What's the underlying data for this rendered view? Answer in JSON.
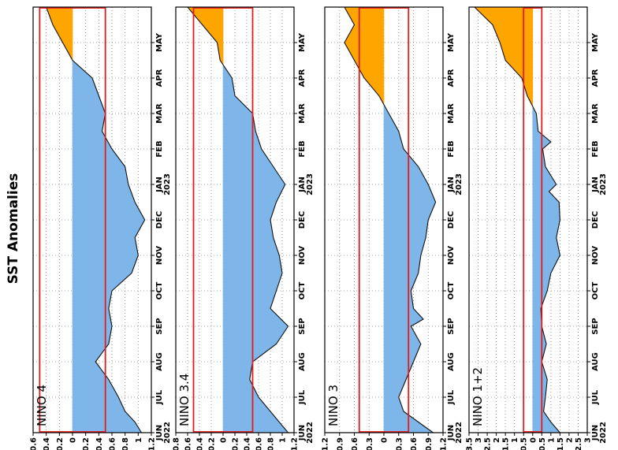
{
  "title": "SST Anomalies",
  "chart_data": [
    {
      "type": "area",
      "name": "NINO 4",
      "label": "NINO 4",
      "ylim": [
        -1.2,
        0.6
      ],
      "ytick_values": [
        0.6,
        0.4,
        0.2,
        0,
        -0.2,
        -0.4,
        -0.6,
        -0.8,
        -1,
        -1.2
      ],
      "ytick_labels": [
        "0.6",
        "0.4",
        "0.2",
        "0",
        "0.2",
        "0.4",
        "0.6",
        "0.8",
        "1",
        "1.2"
      ],
      "highlight_range": [
        -0.5,
        0.5
      ],
      "x": [
        0,
        0.3,
        0.6,
        1.0,
        1.5,
        2.0,
        2.5,
        3.0,
        3.5,
        4.0,
        4.5,
        5.0,
        5.5,
        6.0,
        6.5,
        7.0,
        7.5,
        8.0,
        8.5,
        9.0,
        9.5,
        10.0,
        10.5,
        11.0,
        11.5,
        12.0
      ],
      "values": [
        -1.05,
        -0.95,
        -0.8,
        -0.7,
        -0.55,
        -0.35,
        -0.55,
        -0.6,
        -0.55,
        -0.6,
        -0.9,
        -1.0,
        -0.95,
        -1.1,
        -0.95,
        -0.85,
        -0.8,
        -0.6,
        -0.45,
        -0.5,
        -0.4,
        -0.3,
        0.0,
        0.15,
        0.3,
        0.4
      ]
    },
    {
      "type": "area",
      "name": "NINO 3.4",
      "label": "NINO 3.4",
      "ylim": [
        -1.2,
        0.8
      ],
      "ytick_values": [
        0.8,
        0.6,
        0.4,
        0.2,
        0,
        -0.2,
        -0.4,
        -0.6,
        -0.8,
        -1,
        -1.2
      ],
      "ytick_labels": [
        "0.8",
        "0.6",
        "0.4",
        "0.2",
        "0",
        "0.2",
        "0.4",
        "0.6",
        "0.8",
        "1",
        "1.2"
      ],
      "highlight_range": [
        -0.5,
        0.5
      ],
      "x": [
        0,
        0.3,
        0.6,
        1.0,
        1.5,
        2.0,
        2.5,
        3.0,
        3.5,
        4.0,
        4.5,
        5.0,
        5.5,
        6.0,
        6.5,
        7.0,
        7.5,
        8.0,
        8.5,
        9.0,
        9.5,
        10.0,
        10.5,
        11.0,
        11.5,
        12.0
      ],
      "values": [
        -1.1,
        -0.95,
        -0.8,
        -0.6,
        -0.45,
        -0.5,
        -0.9,
        -1.1,
        -0.8,
        -0.9,
        -1.0,
        -0.95,
        -0.85,
        -0.8,
        -0.9,
        -1.05,
        -0.85,
        -0.65,
        -0.55,
        -0.5,
        -0.2,
        -0.15,
        0.05,
        0.1,
        0.35,
        0.6
      ]
    },
    {
      "type": "area",
      "name": "NINO 3",
      "label": "NINO 3",
      "ylim": [
        -1.2,
        1.2
      ],
      "ytick_values": [
        1.2,
        0.9,
        0.6,
        0.3,
        0,
        -0.3,
        -0.6,
        -0.9,
        -1.2
      ],
      "ytick_labels": [
        "1.2",
        "0.9",
        "0.6",
        "0.3",
        "0",
        "0.3",
        "0.6",
        "0.9",
        "1.2"
      ],
      "highlight_range": [
        -0.5,
        0.5
      ],
      "x": [
        0,
        0.3,
        0.6,
        1.0,
        1.5,
        2.0,
        2.5,
        3.0,
        3.2,
        3.5,
        4.0,
        4.5,
        5.0,
        5.5,
        6.0,
        6.5,
        7.0,
        7.5,
        8.0,
        8.5,
        9.0,
        9.5,
        10.0,
        10.5,
        11.0,
        11.5,
        12.0
      ],
      "values": [
        -1.0,
        -0.7,
        -0.4,
        -0.3,
        -0.45,
        -0.6,
        -0.75,
        -0.55,
        -0.8,
        -0.6,
        -0.55,
        -0.7,
        -0.75,
        -0.85,
        -0.9,
        -1.05,
        -0.9,
        -0.7,
        -0.4,
        -0.3,
        -0.1,
        0.1,
        0.4,
        0.6,
        0.8,
        0.6,
        0.8
      ]
    },
    {
      "type": "area",
      "name": "NINO 1+2",
      "label": "NINO 1+2",
      "ylim": [
        -3,
        3.5
      ],
      "ytick_values": [
        3.5,
        3,
        2.5,
        2,
        1.5,
        1,
        0.5,
        0,
        -0.5,
        -1,
        -1.5,
        -2,
        -2.5,
        -3
      ],
      "ytick_labels": [
        "3.5",
        "3",
        "2.5",
        "2",
        "1.5",
        "1",
        "0.5",
        "0",
        "0.5",
        "1",
        "1.5",
        "2",
        "2.5",
        "3"
      ],
      "highlight_range": [
        -0.5,
        0.5
      ],
      "x": [
        0,
        0.3,
        0.6,
        1.0,
        1.5,
        2.0,
        2.5,
        3.0,
        3.5,
        4.0,
        4.5,
        5.0,
        5.5,
        6.0,
        6.5,
        6.8,
        7.0,
        7.5,
        8.0,
        8.2,
        8.5,
        9.0,
        9.5,
        10.0,
        10.5,
        11.0,
        11.5,
        12.0
      ],
      "values": [
        -1.5,
        -1.0,
        -0.6,
        -0.7,
        -0.8,
        -0.5,
        -0.75,
        -0.5,
        -0.45,
        -0.8,
        -1.0,
        -1.5,
        -1.3,
        -1.5,
        -1.45,
        -0.9,
        -1.3,
        -0.7,
        -0.55,
        -1.0,
        -0.3,
        -0.2,
        0.3,
        0.6,
        1.5,
        1.8,
        2.2,
        3.2
      ]
    }
  ],
  "months": [
    "JUN",
    "JUL",
    "AUG",
    "SEP",
    "OCT",
    "NOV",
    "DEC",
    "JAN",
    "FEB",
    "MAR",
    "APR",
    "MAY"
  ],
  "year_labels": {
    "0": "2022",
    "7": "2023"
  },
  "colors": {
    "positive": "#FFA500",
    "negative": "#7EB6E9",
    "highlight": "#E51B1B",
    "grid": "#888888"
  }
}
